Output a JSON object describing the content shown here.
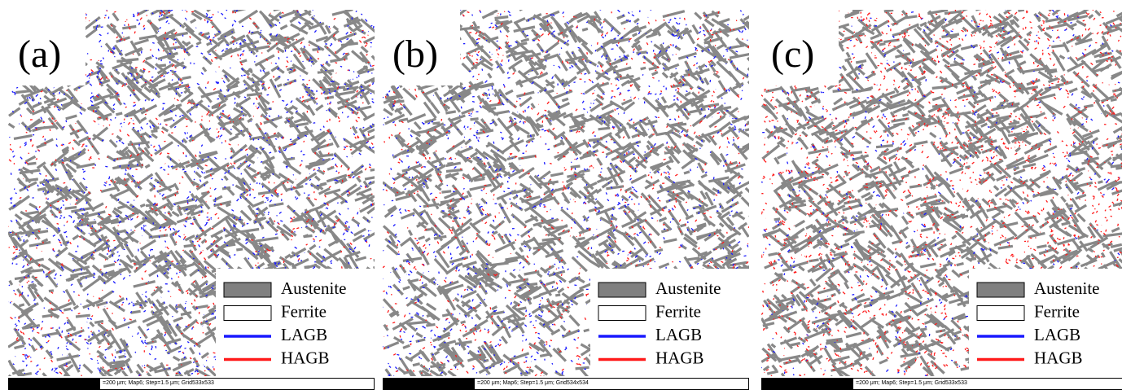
{
  "panels": [
    {
      "label": "(a)",
      "scale_bar": "=200 μm; Map6; Step=1.5 μm; Grid533x533"
    },
    {
      "label": "(b)",
      "scale_bar": "=200 μm; Map6; Step=1.5 μm; Grid534x534"
    },
    {
      "label": "(c)",
      "scale_bar": "=200 μm; Map6; Step=1.5 μm; Grid533x533"
    }
  ],
  "legend": {
    "items": [
      "Austenite",
      "Ferrite",
      "LAGB",
      "HAGB"
    ]
  }
}
